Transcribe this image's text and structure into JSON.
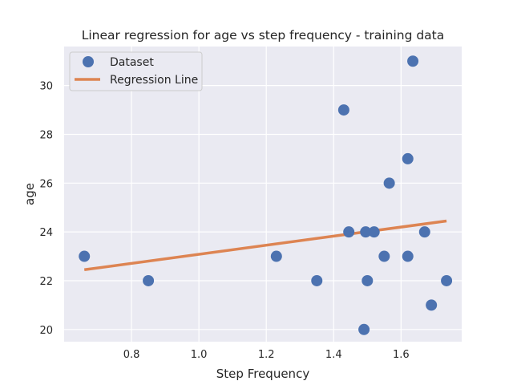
{
  "chart_data": {
    "type": "scatter",
    "title": "Linear regression for age vs step frequency - training data",
    "xlabel": "Step Frequency",
    "ylabel": "age",
    "xlim": [
      0.6,
      1.78
    ],
    "ylim": [
      19.5,
      31.6
    ],
    "xticks": [
      "0.8",
      "1.0",
      "1.2",
      "1.4",
      "1.6"
    ],
    "xtick_values": [
      0.8,
      1.0,
      1.2,
      1.4,
      1.6
    ],
    "yticks": [
      "20",
      "22",
      "24",
      "26",
      "28",
      "30"
    ],
    "ytick_values": [
      20,
      22,
      24,
      26,
      28,
      30
    ],
    "grid": true,
    "legend_position": "upper-left",
    "series": [
      {
        "name": "Dataset",
        "kind": "scatter",
        "color": "#4c72b0",
        "points": [
          {
            "x": 0.66,
            "y": 23
          },
          {
            "x": 0.85,
            "y": 22
          },
          {
            "x": 1.23,
            "y": 23
          },
          {
            "x": 1.35,
            "y": 22
          },
          {
            "x": 1.43,
            "y": 29
          },
          {
            "x": 1.445,
            "y": 24
          },
          {
            "x": 1.49,
            "y": 20
          },
          {
            "x": 1.495,
            "y": 24
          },
          {
            "x": 1.5,
            "y": 22
          },
          {
            "x": 1.52,
            "y": 24
          },
          {
            "x": 1.55,
            "y": 23
          },
          {
            "x": 1.565,
            "y": 26
          },
          {
            "x": 1.62,
            "y": 27
          },
          {
            "x": 1.62,
            "y": 23
          },
          {
            "x": 1.635,
            "y": 31
          },
          {
            "x": 1.67,
            "y": 24
          },
          {
            "x": 1.69,
            "y": 21
          },
          {
            "x": 1.735,
            "y": 22
          }
        ]
      },
      {
        "name": "Regression Line",
        "kind": "line",
        "color": "#dd8452",
        "points": [
          {
            "x": 0.66,
            "y": 22.45
          },
          {
            "x": 1.735,
            "y": 24.45
          }
        ]
      }
    ]
  }
}
